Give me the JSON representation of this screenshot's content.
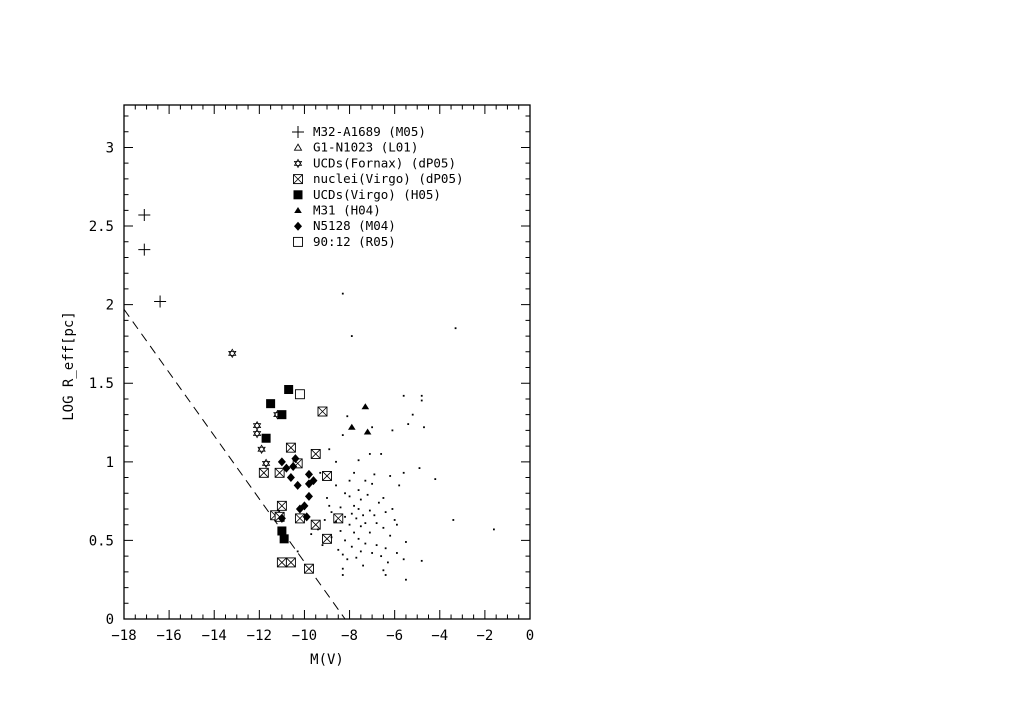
{
  "chart_data": {
    "type": "scatter",
    "xlabel": "M(V)",
    "ylabel": "LOG R_eff[pc]",
    "xlim": [
      -18,
      0
    ],
    "ylim": [
      0,
      3.27
    ],
    "xticks": [
      -18,
      -16,
      -14,
      -12,
      -10,
      -8,
      -6,
      -4,
      -2,
      0
    ],
    "yticks": [
      0,
      0.5,
      1,
      1.5,
      2,
      2.5,
      3
    ],
    "grid": false,
    "legend_position": "top-center",
    "reference_line": {
      "style": "dashed",
      "points": [
        [
          -18,
          1.97
        ],
        [
          -8.2,
          0
        ]
      ]
    },
    "series": [
      {
        "name": "M32-A1689 (M05)",
        "marker": "plus",
        "points": [
          [
            -17.1,
            2.57
          ],
          [
            -17.1,
            2.35
          ],
          [
            -16.4,
            2.02
          ]
        ]
      },
      {
        "name": "G1-N1023 (L01)",
        "marker": "open-triangle",
        "points": []
      },
      {
        "name": "UCDs(Fornax) (dP05)",
        "marker": "star",
        "points": [
          [
            -13.2,
            1.69
          ],
          [
            -12.1,
            1.23
          ],
          [
            -12.1,
            1.18
          ],
          [
            -11.9,
            1.08
          ],
          [
            -11.7,
            0.99
          ],
          [
            -11.2,
            1.3
          ]
        ]
      },
      {
        "name": "nuclei(Virgo) (dP05)",
        "marker": "crossed-square",
        "points": [
          [
            -11.8,
            0.93
          ],
          [
            -11.1,
            0.93
          ],
          [
            -10.6,
            1.09
          ],
          [
            -10.3,
            0.99
          ],
          [
            -9.5,
            1.05
          ],
          [
            -9.2,
            1.32
          ],
          [
            -9.0,
            0.91
          ],
          [
            -11.0,
            0.72
          ],
          [
            -11.3,
            0.66
          ],
          [
            -11.1,
            0.65
          ],
          [
            -10.2,
            0.64
          ],
          [
            -9.5,
            0.6
          ],
          [
            -8.5,
            0.64
          ],
          [
            -9.0,
            0.51
          ],
          [
            -11.0,
            0.36
          ],
          [
            -10.6,
            0.36
          ],
          [
            -9.8,
            0.32
          ]
        ]
      },
      {
        "name": "UCDs(Virgo) (H05)",
        "marker": "filled-square",
        "points": [
          [
            -11.5,
            1.37
          ],
          [
            -11.0,
            1.3
          ],
          [
            -10.7,
            1.46
          ],
          [
            -11.7,
            1.15
          ],
          [
            -11.0,
            0.56
          ],
          [
            -10.9,
            0.51
          ]
        ]
      },
      {
        "name": "M31 (H04)",
        "marker": "filled-triangle",
        "points": [
          [
            -7.9,
            1.22
          ],
          [
            -7.3,
            1.35
          ],
          [
            -7.2,
            1.19
          ]
        ]
      },
      {
        "name": "N5128 (M04)",
        "marker": "filled-diamond",
        "points": [
          [
            -11.0,
            1.0
          ],
          [
            -10.8,
            0.96
          ],
          [
            -10.5,
            0.97
          ],
          [
            -10.4,
            1.02
          ],
          [
            -10.6,
            0.9
          ],
          [
            -10.3,
            0.85
          ],
          [
            -9.8,
            0.92
          ],
          [
            -9.6,
            0.88
          ],
          [
            -9.8,
            0.86
          ],
          [
            -9.8,
            0.78
          ],
          [
            -10.0,
            0.72
          ],
          [
            -10.2,
            0.7
          ],
          [
            -9.9,
            0.65
          ],
          [
            -11.0,
            0.64
          ]
        ]
      },
      {
        "name": "90:12 (R05)",
        "marker": "open-square",
        "points": [
          [
            -10.2,
            1.43
          ]
        ]
      },
      {
        "name": "",
        "marker": "dot",
        "points": [
          [
            -8.3,
            2.07
          ],
          [
            -7.9,
            1.8
          ],
          [
            -3.3,
            1.85
          ],
          [
            -1.6,
            0.57
          ],
          [
            -3.4,
            0.63
          ],
          [
            -4.2,
            0.89
          ],
          [
            -4.8,
            1.42
          ],
          [
            -4.8,
            1.39
          ],
          [
            -5.2,
            1.3
          ],
          [
            -5.6,
            1.42
          ],
          [
            -4.7,
            1.22
          ],
          [
            -6.1,
            1.2
          ],
          [
            -5.4,
            1.24
          ],
          [
            -7.0,
            1.22
          ],
          [
            -8.1,
            1.29
          ],
          [
            -8.3,
            1.17
          ],
          [
            -7.1,
            1.05
          ],
          [
            -6.6,
            1.05
          ],
          [
            -7.6,
            1.01
          ],
          [
            -5.6,
            0.93
          ],
          [
            -4.9,
            0.96
          ],
          [
            -7.8,
            0.93
          ],
          [
            -6.9,
            0.92
          ],
          [
            -6.2,
            0.91
          ],
          [
            -7.3,
            0.88
          ],
          [
            -7.0,
            0.86
          ],
          [
            -5.8,
            0.85
          ],
          [
            -8.6,
            0.85
          ],
          [
            -7.6,
            0.82
          ],
          [
            -8.2,
            0.8
          ],
          [
            -8.0,
            0.78
          ],
          [
            -7.5,
            0.76
          ],
          [
            -6.7,
            0.74
          ],
          [
            -8.9,
            0.72
          ],
          [
            -8.4,
            0.71
          ],
          [
            -7.6,
            0.7
          ],
          [
            -7.1,
            0.69
          ],
          [
            -6.4,
            0.68
          ],
          [
            -8.8,
            0.68
          ],
          [
            -7.9,
            0.67
          ],
          [
            -7.4,
            0.66
          ],
          [
            -6.9,
            0.66
          ],
          [
            -8.2,
            0.65
          ],
          [
            -7.7,
            0.64
          ],
          [
            -9.1,
            0.63
          ],
          [
            -6.0,
            0.63
          ],
          [
            -8.6,
            0.62
          ],
          [
            -7.3,
            0.61
          ],
          [
            -6.8,
            0.61
          ],
          [
            -8.0,
            0.6
          ],
          [
            -7.5,
            0.59
          ],
          [
            -9.4,
            0.57
          ],
          [
            -6.5,
            0.58
          ],
          [
            -8.4,
            0.56
          ],
          [
            -7.8,
            0.55
          ],
          [
            -7.1,
            0.55
          ],
          [
            -9.7,
            0.54
          ],
          [
            -6.2,
            0.53
          ],
          [
            -8.8,
            0.52
          ],
          [
            -7.6,
            0.51
          ],
          [
            -8.2,
            0.5
          ],
          [
            -5.5,
            0.49
          ],
          [
            -7.3,
            0.48
          ],
          [
            -6.8,
            0.47
          ],
          [
            -9.2,
            0.47
          ],
          [
            -7.9,
            0.46
          ],
          [
            -6.4,
            0.45
          ],
          [
            -8.5,
            0.44
          ],
          [
            -7.5,
            0.43
          ],
          [
            -10.3,
            0.43
          ],
          [
            -7.0,
            0.42
          ],
          [
            -5.9,
            0.42
          ],
          [
            -8.3,
            0.41
          ],
          [
            -6.6,
            0.4
          ],
          [
            -7.7,
            0.39
          ],
          [
            -5.6,
            0.38
          ],
          [
            -8.1,
            0.38
          ],
          [
            -6.3,
            0.36
          ],
          [
            -4.8,
            0.37
          ],
          [
            -7.4,
            0.34
          ],
          [
            -8.3,
            0.32
          ],
          [
            -6.5,
            0.31
          ],
          [
            -8.3,
            0.28
          ],
          [
            -6.4,
            0.28
          ],
          [
            -5.5,
            0.25
          ],
          [
            -9.3,
            0.93
          ],
          [
            -8.6,
            1.0
          ],
          [
            -8.9,
            1.08
          ],
          [
            -6.5,
            0.77
          ],
          [
            -5.9,
            0.6
          ],
          [
            -7.2,
            0.79
          ],
          [
            -8.0,
            0.88
          ],
          [
            -9.0,
            0.77
          ],
          [
            -6.1,
            0.7
          ],
          [
            -7.8,
            0.72
          ]
        ]
      }
    ]
  }
}
